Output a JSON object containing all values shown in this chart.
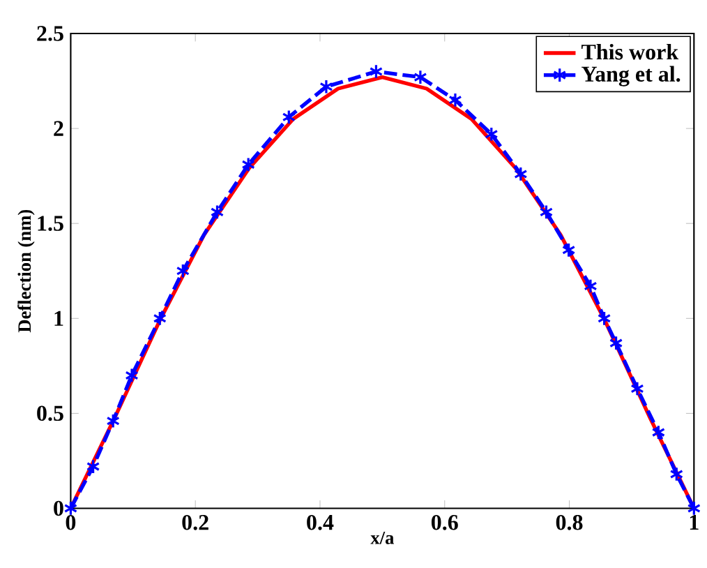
{
  "chart_data": {
    "type": "line",
    "xlabel": "x/a",
    "ylabel": "Deflection (nm)",
    "xlim": [
      0,
      1
    ],
    "ylim": [
      0,
      2.5
    ],
    "xticks": [
      0,
      0.2,
      0.4,
      0.6,
      0.8,
      {
        "value": 1,
        "label": "1"
      }
    ],
    "yticks": [
      0,
      0.5,
      1,
      1.5,
      2,
      2.5
    ],
    "legend": "top right",
    "grid": false,
    "series": [
      {
        "name": "This work",
        "color": "#ff0000",
        "line_style": "solid",
        "marker": "none",
        "x": [
          0,
          0.071,
          0.143,
          0.214,
          0.286,
          0.357,
          0.429,
          0.5,
          0.571,
          0.643,
          0.714,
          0.786,
          0.857,
          0.929,
          1
        ],
        "values": [
          0,
          0.48,
          0.99,
          1.44,
          1.79,
          2.05,
          2.21,
          2.27,
          2.21,
          2.05,
          1.79,
          1.44,
          0.99,
          0.48,
          0
        ]
      },
      {
        "name": "Yang et al.",
        "color": "#0000ff",
        "line_style": "dashed",
        "marker": "cross",
        "x": [
          0,
          0.036,
          0.068,
          0.098,
          0.143,
          0.18,
          0.235,
          0.285,
          0.35,
          0.41,
          0.49,
          0.561,
          0.617,
          0.675,
          0.722,
          0.763,
          0.799,
          0.834,
          0.856,
          0.875,
          0.909,
          0.943,
          0.972,
          1
        ],
        "values": [
          0,
          0.22,
          0.46,
          0.7,
          1.0,
          1.25,
          1.56,
          1.81,
          2.06,
          2.22,
          2.3,
          2.27,
          2.15,
          1.97,
          1.76,
          1.56,
          1.36,
          1.17,
          1.0,
          0.87,
          0.63,
          0.4,
          0.18,
          0
        ]
      }
    ]
  }
}
